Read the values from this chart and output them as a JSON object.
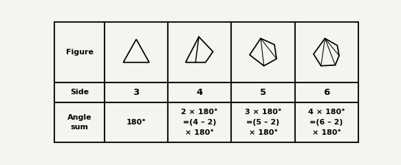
{
  "bg_color": "#f5f5f0",
  "border_color": "#111111",
  "row_labels": [
    "Figure",
    "Side",
    "Angle\nsum"
  ],
  "sides": [
    "3",
    "4",
    "5",
    "6"
  ],
  "angle_sums": [
    "180°",
    "2 × 180°\n=(4 – 2)\n× 180°",
    "3 × 180°\n=(5 – 2)\n× 180°",
    "4 × 180°\n=(6 – 2)\n× 180°"
  ],
  "font_size_label": 8,
  "font_size_data": 7.5,
  "lw_border": 1.5,
  "lw_shape": 1.3,
  "lw_diag": 0.8
}
